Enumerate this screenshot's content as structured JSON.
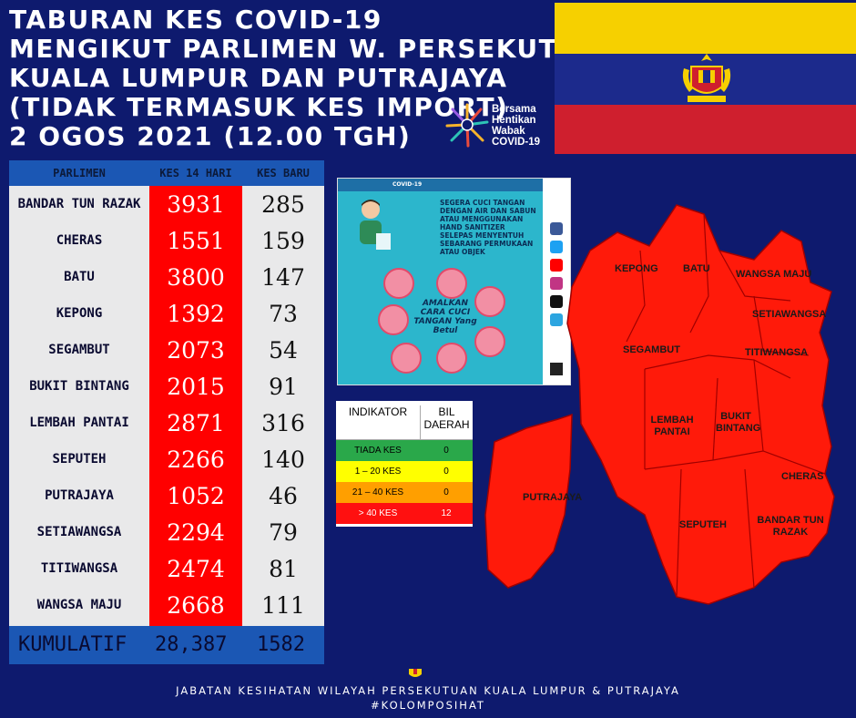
{
  "title_lines": [
    "TABURAN KES COVID-19",
    "MENGIKUT PARLIMEN W. PERSEKUTUAN",
    "KUALA LUMPUR DAN PUTRAJAYA",
    "(TIDAK TERMASUK KES IMPORT)",
    "2 OGOS 2021 (12.00 TGH)"
  ],
  "campaign": {
    "line1": "Bersama",
    "line2": "Hentikan",
    "line3": "Wabak",
    "line4": "COVID-19",
    "icon": "sunburst-icon"
  },
  "table": {
    "headers": {
      "parlimen": "PARLIMEN",
      "kes14": "KES 14 HARI",
      "baru": "KES BARU"
    },
    "rows": [
      {
        "name": "BANDAR TUN RAZAK",
        "kes14": "3931",
        "baru": "285"
      },
      {
        "name": "CHERAS",
        "kes14": "1551",
        "baru": "159"
      },
      {
        "name": "BATU",
        "kes14": "3800",
        "baru": "147"
      },
      {
        "name": "KEPONG",
        "kes14": "1392",
        "baru": "73"
      },
      {
        "name": "SEGAMBUT",
        "kes14": "2073",
        "baru": "54"
      },
      {
        "name": "BUKIT BINTANG",
        "kes14": "2015",
        "baru": "91"
      },
      {
        "name": "LEMBAH PANTAI",
        "kes14": "2871",
        "baru": "316"
      },
      {
        "name": "SEPUTEH",
        "kes14": "2266",
        "baru": "140"
      },
      {
        "name": "PUTRAJAYA",
        "kes14": "1052",
        "baru": "46"
      },
      {
        "name": "SETIAWANGSA",
        "kes14": "2294",
        "baru": "79"
      },
      {
        "name": "TITIWANGSA",
        "kes14": "2474",
        "baru": "81"
      },
      {
        "name": "WANGSA MAJU",
        "kes14": "2668",
        "baru": "111"
      }
    ],
    "footer": {
      "label": "KUMULATIF",
      "kes14": "28,387",
      "baru": "1582"
    }
  },
  "poster": {
    "bar": "COVID-19",
    "headline": "SEGERA CUCI TANGAN DENGAN AIR DAN SABUN ATAU MENGGUNAKAN HAND SANITIZER SELEPAS MENYENTUH SEBARANG PERMUKAAN ATAU OBJEK",
    "center": "AMALKAN CARA CUCI TANGAN Yang Betul"
  },
  "legend": {
    "col1": "INDIKATOR",
    "col2": "BIL DAERAH",
    "rows": [
      {
        "label": "TIADA KES",
        "value": "0",
        "color": "#2aa84a"
      },
      {
        "label": "1 – 20 KES",
        "value": "0",
        "color": "#ffff00"
      },
      {
        "label": "21 – 40 KES",
        "value": "0",
        "color": "#ff9f00"
      },
      {
        "label": "> 40 KES",
        "value": "12",
        "color": "#ff1010"
      }
    ]
  },
  "map": {
    "labels": {
      "kepong": "KEPONG",
      "batu": "BATU",
      "wangsa_maju": "WANGSA MAJU",
      "setiawangsa": "SETIAWANGSA",
      "segambut": "SEGAMBUT",
      "titiwangsa": "TITIWANGSA",
      "lembah_pantai": "LEMBAH PANTAI",
      "bukit_bintang": "BUKIT BINTANG",
      "cheras": "CHERAS",
      "putrajaya": "PUTRAJAYA",
      "seputeh": "SEPUTEH",
      "bandar_tun_razak": "BANDAR TUN RAZAK"
    },
    "fill": "#ff1a0a"
  },
  "colors": {
    "background": "#0e1a6e",
    "header": "#1b57b4",
    "highlight": "#ff0000",
    "row_bg": "#e9e9ea"
  },
  "footer": {
    "line1": "JABATAN KESIHATAN WILAYAH PERSEKUTUAN KUALA LUMPUR & PUTRAJAYA",
    "line2": "#KOLOMPOSIHAT"
  }
}
